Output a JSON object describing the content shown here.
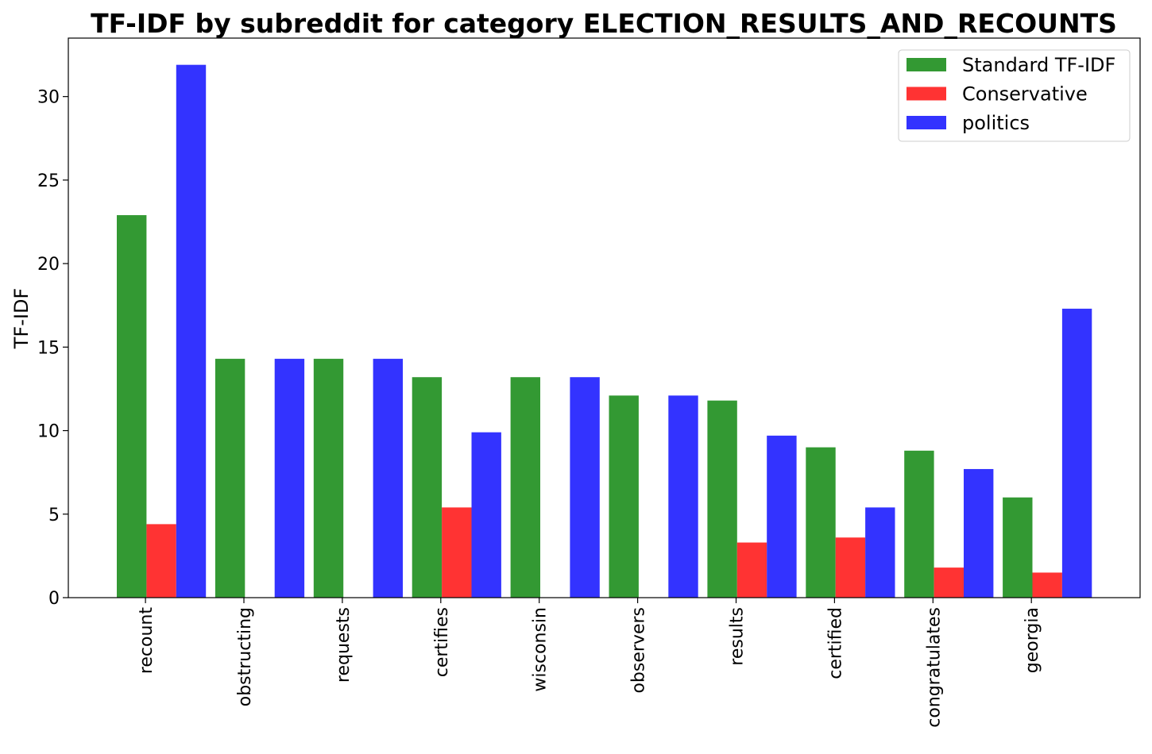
{
  "chart_data": {
    "type": "bar",
    "title": "TF-IDF by subreddit for category ELECTION_RESULTS_AND_RECOUNTS",
    "xlabel": "",
    "ylabel": "TF-IDF",
    "ylim": [
      0,
      33.5
    ],
    "yticks": [
      0,
      5,
      10,
      15,
      20,
      25,
      30
    ],
    "grid": false,
    "legend_position": "top-right",
    "categories": [
      "recount",
      "obstructing",
      "requests",
      "certifies",
      "wisconsin",
      "observers",
      "results",
      "certified",
      "congratulates",
      "georgia"
    ],
    "series": [
      {
        "name": "Standard TF-IDF",
        "color": "#339933",
        "values": [
          22.9,
          14.3,
          14.3,
          13.2,
          13.2,
          12.1,
          11.8,
          9.0,
          8.8,
          6.0
        ]
      },
      {
        "name": "Conservative",
        "color": "#ff3333",
        "values": [
          4.4,
          0,
          0,
          5.4,
          0,
          0,
          3.3,
          3.6,
          1.8,
          1.5
        ]
      },
      {
        "name": "politics",
        "color": "#3333ff",
        "values": [
          31.9,
          14.3,
          14.3,
          9.9,
          13.2,
          12.1,
          9.7,
          5.4,
          7.7,
          17.3
        ]
      }
    ]
  }
}
